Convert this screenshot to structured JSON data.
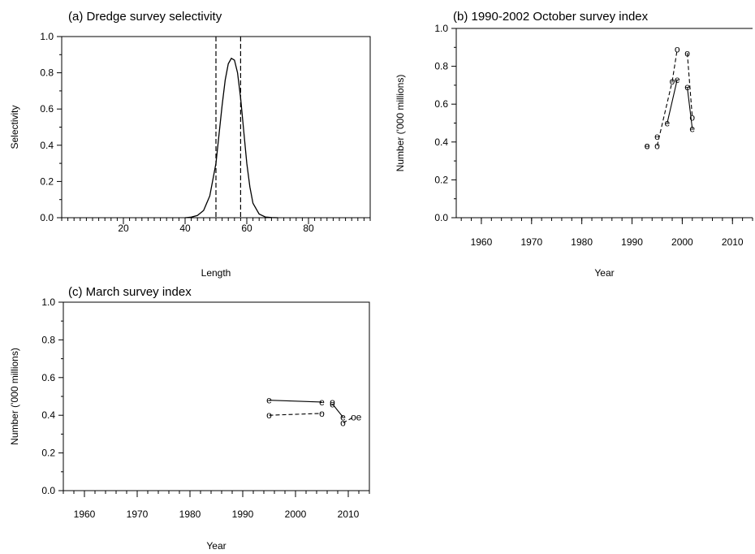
{
  "chart_data": [
    {
      "type": "line",
      "title": "(a) Dredge survey selectivity",
      "xlabel": "Length",
      "ylabel": "Selectivity",
      "xlim": [
        0,
        100
      ],
      "ylim": [
        0,
        1.0
      ],
      "xticks": [
        20,
        40,
        60,
        80
      ],
      "xtick_labels": [
        "20",
        "40",
        "60",
        "80"
      ],
      "yticks": [
        0,
        0.2,
        0.4,
        0.6,
        0.8,
        1.0
      ],
      "ytick_labels": [
        "0.0",
        "0.2",
        "0.4",
        "0.6",
        "0.8",
        "1.0"
      ],
      "minor_x_step": 2,
      "series": [
        {
          "style": "solid",
          "x": [
            40,
            42,
            44,
            46,
            48,
            50,
            51,
            52,
            53,
            54,
            55,
            56,
            57,
            58,
            59,
            60,
            61,
            62,
            64,
            66,
            68,
            70
          ],
          "y": [
            0.0,
            0.003,
            0.012,
            0.04,
            0.12,
            0.3,
            0.46,
            0.62,
            0.76,
            0.85,
            0.88,
            0.87,
            0.8,
            0.66,
            0.48,
            0.3,
            0.17,
            0.08,
            0.02,
            0.004,
            0.001,
            0.0
          ]
        }
      ],
      "vlines": [
        {
          "x": 50,
          "style": "dashed"
        },
        {
          "x": 58,
          "style": "dashed"
        }
      ]
    },
    {
      "type": "line",
      "title": "(b) 1990-2002 October survey index",
      "xlabel": "Year",
      "ylabel": "Number ('000 millions)",
      "xlim": [
        1955,
        2014
      ],
      "ylim": [
        0,
        1.0
      ],
      "xticks": [
        1960,
        1970,
        1980,
        1990,
        2000,
        2010
      ],
      "xtick_labels": [
        "1960",
        "1970",
        "1980",
        "1990",
        "2000",
        "2010"
      ],
      "yticks": [
        0,
        0.2,
        0.4,
        0.6,
        0.8,
        1.0
      ],
      "ytick_labels": [
        "0.0",
        "0.2",
        "0.4",
        "0.6",
        "0.8",
        "1.0"
      ],
      "minor_x_step": 2,
      "series": [
        {
          "marker": "o",
          "line": "dashed",
          "points": [
            [
              1993,
              0.38
            ],
            [
              1995,
              0.38
            ],
            [
              1998,
              0.72
            ],
            [
              1999,
              0.89
            ],
            [
              2001,
              0.87
            ],
            [
              2002,
              0.53
            ]
          ],
          "segments": [
            [
              1995,
              1998
            ],
            [
              1998,
              1999
            ],
            [
              2001,
              2002
            ]
          ]
        },
        {
          "marker": "e",
          "line": "solid",
          "points": [
            [
              1993,
              0.38
            ],
            [
              1995,
              0.43
            ],
            [
              1997,
              0.5
            ],
            [
              1999,
              0.73
            ],
            [
              2001,
              0.69
            ],
            [
              2002,
              0.47
            ]
          ],
          "segments": [
            [
              1997,
              1999
            ],
            [
              2001,
              2002
            ]
          ]
        }
      ]
    },
    {
      "type": "line",
      "title": "(c) March survey index",
      "xlabel": "Year",
      "ylabel": "Number ('000 millions)",
      "xlim": [
        1956,
        2014
      ],
      "ylim": [
        0,
        1.0
      ],
      "xticks": [
        1960,
        1970,
        1980,
        1990,
        2000,
        2010
      ],
      "xtick_labels": [
        "1960",
        "1970",
        "1980",
        "1990",
        "2000",
        "2010"
      ],
      "yticks": [
        0,
        0.2,
        0.4,
        0.6,
        0.8,
        1.0
      ],
      "ytick_labels": [
        "0.0",
        "0.2",
        "0.4",
        "0.6",
        "0.8",
        "1.0"
      ],
      "minor_x_step": 2,
      "series": [
        {
          "marker": "e",
          "line": "solid",
          "points": [
            [
              1995,
              0.48
            ],
            [
              2005,
              0.47
            ],
            [
              2007,
              0.46
            ],
            [
              2009,
              0.39
            ],
            [
              2012,
              0.39
            ]
          ],
          "segments": [
            [
              1995,
              2005
            ],
            [
              2007,
              2009
            ]
          ]
        },
        {
          "marker": "o",
          "line": "dashed",
          "points": [
            [
              1995,
              0.4
            ],
            [
              2005,
              0.41
            ],
            [
              2007,
              0.47
            ],
            [
              2009,
              0.36
            ],
            [
              2011,
              0.39
            ]
          ],
          "segments": [
            [
              1995,
              2005
            ],
            [
              2009,
              2011
            ]
          ]
        }
      ]
    }
  ]
}
